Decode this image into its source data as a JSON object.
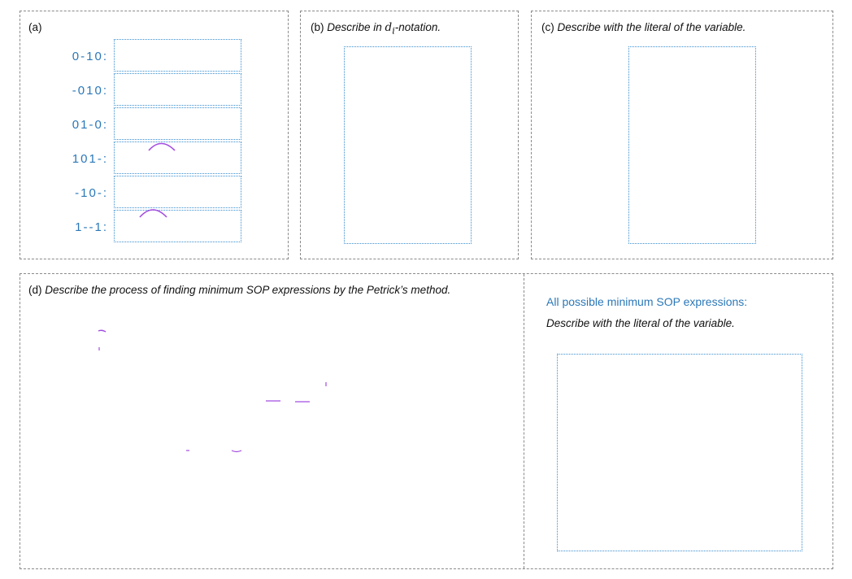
{
  "panel_a": {
    "label": "(a)",
    "rows": [
      {
        "term": "0-10:"
      },
      {
        "term": "-010:"
      },
      {
        "term": "01-0:"
      },
      {
        "term": "101-:"
      },
      {
        "term": "-10-:"
      },
      {
        "term": "1--1:"
      }
    ]
  },
  "panel_b": {
    "prefix": "(b) ",
    "label_start": "Describe in ",
    "math_base": "d",
    "math_sub": "i",
    "label_end": "-notation."
  },
  "panel_c": {
    "prefix": "(c) ",
    "label": "Describe with the literal of the variable."
  },
  "panel_d": {
    "prefix": "(d) ",
    "label": "Describe the process of finding minimum SOP expressions by the Petrick’s method."
  },
  "panel_e": {
    "heading": "All possible minimum SOP expressions:",
    "subheading": "Describe with the literal of the variable."
  },
  "colors": {
    "accent_blue": "#2b78b8",
    "box_border": "#3a8fd0",
    "ink_purple": "#a24de0"
  }
}
